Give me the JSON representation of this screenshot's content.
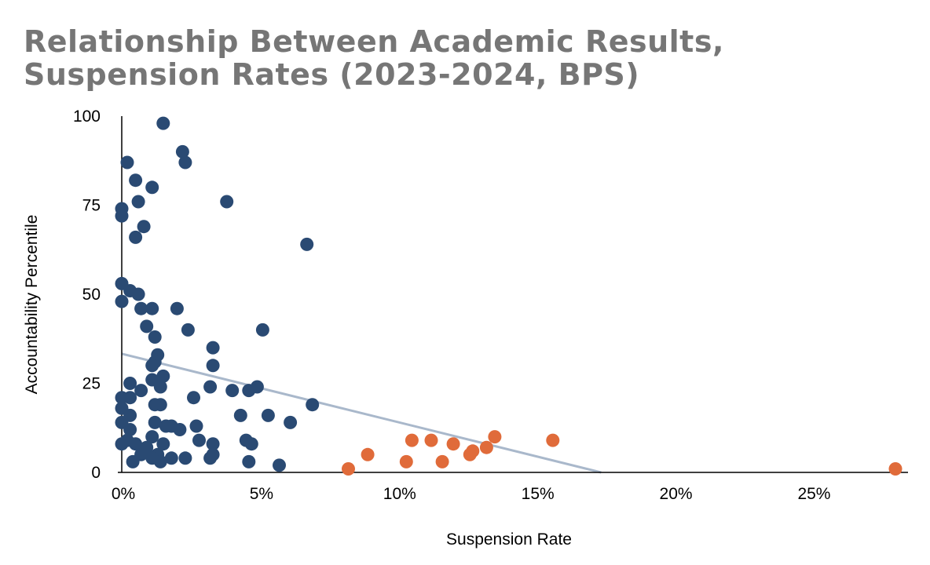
{
  "chart_data": {
    "type": "scatter",
    "title": "Relationship Between Academic Results,\nSuspension Rates (2023-2024, BPS)",
    "xlabel": "Suspension Rate",
    "ylabel": "Accountability Percentile",
    "xlim": [
      0,
      0.28
    ],
    "ylim": [
      0,
      100
    ],
    "x_ticks": [
      "0%",
      "5%",
      "10%",
      "15%",
      "20%",
      "25%"
    ],
    "y_ticks": [
      "0",
      "25",
      "50",
      "75",
      "100"
    ],
    "colors": {
      "primary": "#2a4a73",
      "highlight": "#e06b3a",
      "trend": "#a9b8cb",
      "title": "#767676"
    },
    "series": [
      {
        "color": "#2a4a73",
        "points": [
          [
            0.015,
            98
          ],
          [
            0.022,
            90
          ],
          [
            0.023,
            87
          ],
          [
            0.002,
            87
          ],
          [
            0.005,
            82
          ],
          [
            0.011,
            80
          ],
          [
            0.038,
            76
          ],
          [
            0.006,
            76
          ],
          [
            0.0,
            74
          ],
          [
            0.0,
            72
          ],
          [
            0.008,
            69
          ],
          [
            0.005,
            66
          ],
          [
            0.067,
            64
          ],
          [
            0.0,
            53
          ],
          [
            0.003,
            51
          ],
          [
            0.006,
            50
          ],
          [
            0.0,
            48
          ],
          [
            0.007,
            46
          ],
          [
            0.011,
            46
          ],
          [
            0.02,
            46
          ],
          [
            0.009,
            41
          ],
          [
            0.024,
            40
          ],
          [
            0.051,
            40
          ],
          [
            0.012,
            38
          ],
          [
            0.033,
            35
          ],
          [
            0.013,
            33
          ],
          [
            0.012,
            31
          ],
          [
            0.011,
            30
          ],
          [
            0.033,
            30
          ],
          [
            0.015,
            27
          ],
          [
            0.011,
            26
          ],
          [
            0.003,
            25
          ],
          [
            0.014,
            24
          ],
          [
            0.032,
            24
          ],
          [
            0.049,
            24
          ],
          [
            0.007,
            23
          ],
          [
            0.04,
            23
          ],
          [
            0.046,
            23
          ],
          [
            0.0,
            21
          ],
          [
            0.003,
            21
          ],
          [
            0.026,
            21
          ],
          [
            0.069,
            19
          ],
          [
            0.012,
            19
          ],
          [
            0.014,
            19
          ],
          [
            0.0,
            18
          ],
          [
            0.003,
            16
          ],
          [
            0.043,
            16
          ],
          [
            0.053,
            16
          ],
          [
            0.0,
            14
          ],
          [
            0.012,
            14
          ],
          [
            0.061,
            14
          ],
          [
            0.003,
            12
          ],
          [
            0.016,
            13
          ],
          [
            0.018,
            13
          ],
          [
            0.021,
            12
          ],
          [
            0.027,
            13
          ],
          [
            0.011,
            10
          ],
          [
            0.002,
            9
          ],
          [
            0.028,
            9
          ],
          [
            0.045,
            9
          ],
          [
            0.0,
            8
          ],
          [
            0.005,
            8
          ],
          [
            0.009,
            7
          ],
          [
            0.015,
            8
          ],
          [
            0.033,
            8
          ],
          [
            0.047,
            8
          ],
          [
            0.007,
            5
          ],
          [
            0.013,
            5
          ],
          [
            0.033,
            5
          ],
          [
            0.011,
            4
          ],
          [
            0.018,
            4
          ],
          [
            0.023,
            4
          ],
          [
            0.032,
            4
          ],
          [
            0.004,
            3
          ],
          [
            0.014,
            3
          ],
          [
            0.046,
            3
          ],
          [
            0.057,
            2
          ]
        ]
      },
      {
        "color": "#e06b3a",
        "points": [
          [
            0.082,
            1
          ],
          [
            0.089,
            5
          ],
          [
            0.103,
            3
          ],
          [
            0.105,
            9
          ],
          [
            0.112,
            9
          ],
          [
            0.116,
            3
          ],
          [
            0.12,
            8
          ],
          [
            0.126,
            5
          ],
          [
            0.127,
            6
          ],
          [
            0.132,
            7
          ],
          [
            0.135,
            10
          ],
          [
            0.156,
            9
          ],
          [
            0.28,
            1
          ]
        ]
      }
    ],
    "trendline": {
      "x": [
        0.0,
        0.1735
      ],
      "y": [
        33.3,
        0.0
      ]
    }
  }
}
